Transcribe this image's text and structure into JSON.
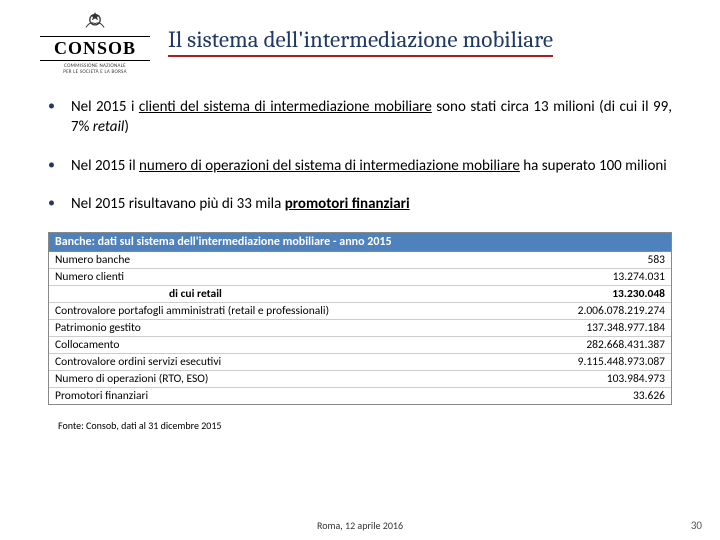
{
  "logo": {
    "name": "CONSOB",
    "subtitle1": "COMMISSIONE NAZIONALE",
    "subtitle2": "PER LE SOCIETÀ E LA BORSA"
  },
  "title": "Il sistema dell'intermediazione mobiliare",
  "bullets": [
    {
      "pre": "Nel 2015 i ",
      "u1": "clienti del sistema di intermediazione mobiliare",
      "mid": " sono stati circa 13 milioni (di cui il 99, 7% ",
      "it": "retail",
      "post": ")"
    },
    {
      "pre": "Nel 2015 il ",
      "u1": "numero di operazioni del sistema di intermediazione mobiliare",
      "post": " ha superato 100 milioni"
    },
    {
      "pre": "Nel 2015 risultavano più di 33 mila ",
      "bu": "promotori finanziari"
    }
  ],
  "table": {
    "header": "Banche: dati sul sistema dell'intermediazione mobiliare - anno 2015",
    "rows": [
      {
        "label": "Numero banche",
        "value": "583",
        "bold": false
      },
      {
        "label": "Numero clienti",
        "value": "13.274.031",
        "bold": false
      },
      {
        "label": "di cui retail",
        "value": "13.230.048",
        "bold": true,
        "indent": true
      },
      {
        "label": "Controvalore portafogli amministrati (retail e professionali)",
        "value": "2.006.078.219.274",
        "bold": false
      },
      {
        "label": "Patrimonio gestito",
        "value": "137.348.977.184",
        "bold": false
      },
      {
        "label": "Collocamento",
        "value": "282.668.431.387",
        "bold": false
      },
      {
        "label": "Controvalore ordini servizi esecutivi",
        "value": "9.115.448.973.087",
        "bold": false
      },
      {
        "label": "Numero di operazioni (RTO, ESO)",
        "value": "103.984.973",
        "bold": false
      },
      {
        "label": "Promotori finanziari",
        "value": "33.626",
        "bold": false
      }
    ]
  },
  "source": "Fonte: Consob, dati al 31 dicembre 2015",
  "footer_date": "Roma, 12 aprile 2016",
  "page_num": "30",
  "colors": {
    "title_color": "#1f3864",
    "title_underline": "#aa2020",
    "table_header_bg": "#4f81bd",
    "bullet_marker": "#1f3864"
  }
}
